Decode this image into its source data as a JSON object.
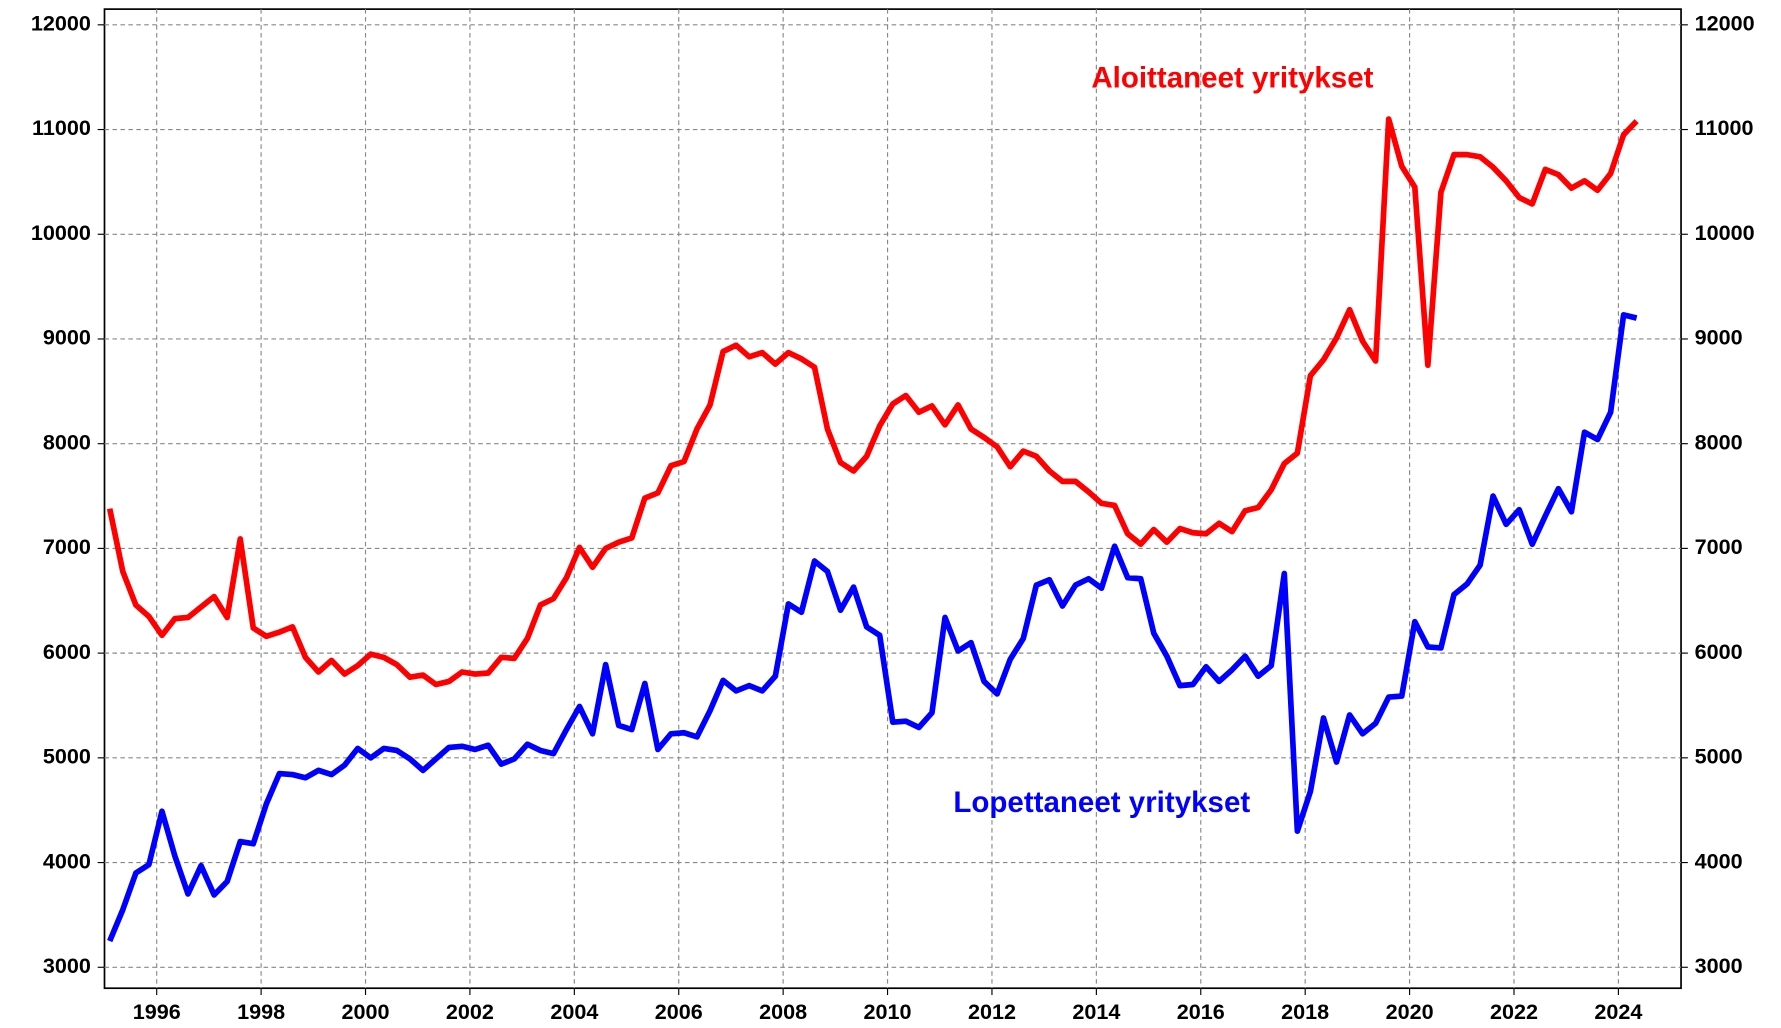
{
  "chart_data": {
    "type": "line",
    "x": [
      1995.1,
      1995.35,
      1995.6,
      1995.85,
      1996.1,
      1996.35,
      1996.6,
      1996.85,
      1997.1,
      1997.35,
      1997.6,
      1997.85,
      1998.1,
      1998.35,
      1998.6,
      1998.85,
      1999.1,
      1999.35,
      1999.6,
      1999.85,
      2000.1,
      2000.35,
      2000.6,
      2000.85,
      2001.1,
      2001.35,
      2001.6,
      2001.85,
      2002.1,
      2002.35,
      2002.6,
      2002.85,
      2003.1,
      2003.35,
      2003.6,
      2003.85,
      2004.1,
      2004.35,
      2004.6,
      2004.85,
      2005.1,
      2005.35,
      2005.6,
      2005.85,
      2006.1,
      2006.35,
      2006.6,
      2006.85,
      2007.1,
      2007.35,
      2007.6,
      2007.85,
      2008.1,
      2008.35,
      2008.6,
      2008.85,
      2009.1,
      2009.35,
      2009.6,
      2009.85,
      2010.1,
      2010.35,
      2010.6,
      2010.85,
      2011.1,
      2011.35,
      2011.6,
      2011.85,
      2012.1,
      2012.35,
      2012.6,
      2012.85,
      2013.1,
      2013.35,
      2013.6,
      2013.85,
      2014.1,
      2014.35,
      2014.6,
      2014.85,
      2015.1,
      2015.35,
      2015.6,
      2015.85,
      2016.1,
      2016.35,
      2016.6,
      2016.85,
      2017.1,
      2017.35,
      2017.6,
      2017.85,
      2018.1,
      2018.35,
      2018.6,
      2018.85,
      2019.1,
      2019.35,
      2019.6,
      2019.85,
      2020.1,
      2020.35,
      2020.6,
      2020.85,
      2021.1,
      2021.35,
      2021.6,
      2021.85,
      2022.1,
      2022.35,
      2022.6,
      2022.85,
      2023.1,
      2023.35,
      2023.6,
      2023.85,
      2024.1,
      2024.35
    ],
    "series": [
      {
        "name": "Aloittaneet yritykset",
        "color": "#ff0000",
        "values": [
          7380,
          6780,
          6460,
          6350,
          6170,
          6330,
          6340,
          6440,
          6540,
          6340,
          7090,
          6240,
          6160,
          6200,
          6250,
          5960,
          5820,
          5930,
          5800,
          5880,
          5990,
          5960,
          5890,
          5770,
          5790,
          5700,
          5730,
          5820,
          5800,
          5810,
          5960,
          5950,
          6140,
          6460,
          6520,
          6720,
          7010,
          6820,
          7000,
          7060,
          7100,
          7480,
          7530,
          7790,
          7830,
          8140,
          8370,
          8880,
          8940,
          8830,
          8870,
          8760,
          8870,
          8810,
          8730,
          8140,
          7820,
          7740,
          7880,
          8170,
          8380,
          8460,
          8300,
          8360,
          8180,
          8370,
          8140,
          8060,
          7970,
          7780,
          7930,
          7880,
          7740,
          7640,
          7640,
          7540,
          7430,
          7410,
          7140,
          7040,
          7180,
          7060,
          7190,
          7150,
          7140,
          7240,
          7160,
          7360,
          7390,
          7560,
          7810,
          7910,
          8650,
          8800,
          9010,
          9280,
          8980,
          8790,
          11100,
          10650,
          10450,
          8750,
          10400,
          10760,
          10760,
          10740,
          10640,
          10510,
          10350,
          10290,
          10620,
          10570,
          10440,
          10510,
          10420,
          10580,
          10950,
          11080
        ]
      },
      {
        "name": "Lopettaneet yritykset",
        "color": "#0000ff",
        "values": [
          3250,
          3550,
          3900,
          3980,
          4490,
          4060,
          3700,
          3970,
          3690,
          3820,
          4200,
          4180,
          4560,
          4850,
          4840,
          4810,
          4880,
          4840,
          4930,
          5090,
          5000,
          5090,
          5070,
          4990,
          4880,
          4990,
          5100,
          5110,
          5080,
          5120,
          4940,
          4990,
          5130,
          5070,
          5040,
          5270,
          5490,
          5230,
          5890,
          5310,
          5270,
          5710,
          5080,
          5230,
          5240,
          5200,
          5450,
          5740,
          5640,
          5690,
          5640,
          5780,
          6470,
          6390,
          6880,
          6780,
          6410,
          6630,
          6250,
          6170,
          5340,
          5350,
          5290,
          5430,
          6340,
          6020,
          6100,
          5730,
          5610,
          5940,
          6140,
          6650,
          6700,
          6450,
          6650,
          6710,
          6620,
          7020,
          6720,
          6710,
          6190,
          5970,
          5690,
          5700,
          5870,
          5730,
          5840,
          5970,
          5780,
          5880,
          6760,
          4300,
          4680,
          5380,
          4960,
          5410,
          5230,
          5330,
          5580,
          5590,
          6300,
          6060,
          6050,
          6560,
          6660,
          6840,
          7500,
          7230,
          7370,
          7040,
          7310,
          7570,
          7350,
          8110,
          8040,
          8300,
          9230,
          9200
        ]
      }
    ],
    "xlim": [
      1995,
      2025.2
    ],
    "xticks": [
      1996,
      1998,
      2000,
      2002,
      2004,
      2006,
      2008,
      2010,
      2012,
      2014,
      2016,
      2018,
      2020,
      2022,
      2024
    ],
    "ylim": [
      2800,
      12150
    ],
    "yticks": [
      3000,
      4000,
      5000,
      6000,
      7000,
      8000,
      9000,
      10000,
      11000,
      12000
    ],
    "y2lim": [
      2800,
      12150
    ],
    "y2ticks": [
      3000,
      4000,
      5000,
      6000,
      7000,
      8000,
      9000,
      10000,
      11000,
      12000
    ],
    "grid": true
  }
}
